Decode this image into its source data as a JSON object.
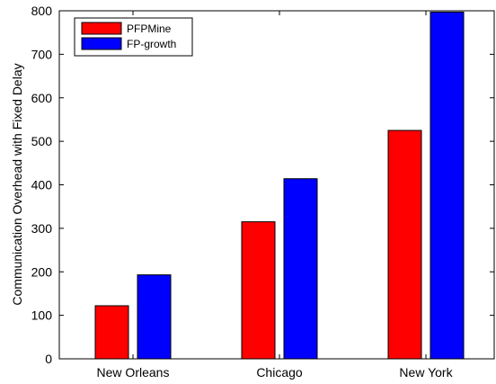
{
  "chart_data": {
    "type": "bar",
    "categories": [
      "New Orleans",
      "Chicago",
      "New York"
    ],
    "series": [
      {
        "name": "PFPMine",
        "values": [
          122,
          315,
          525
        ],
        "color": "#ff0000"
      },
      {
        "name": "FP-growth",
        "values": [
          193,
          414,
          797
        ],
        "color": "#0000ff"
      }
    ],
    "title": "",
    "xlabel": "",
    "ylabel": "Communication Overhead with Fixed Delay",
    "ylim": [
      0,
      800
    ],
    "yticks": [
      0,
      100,
      200,
      300,
      400,
      500,
      600,
      700,
      800
    ],
    "grid": false,
    "legend_position": "top-left"
  }
}
